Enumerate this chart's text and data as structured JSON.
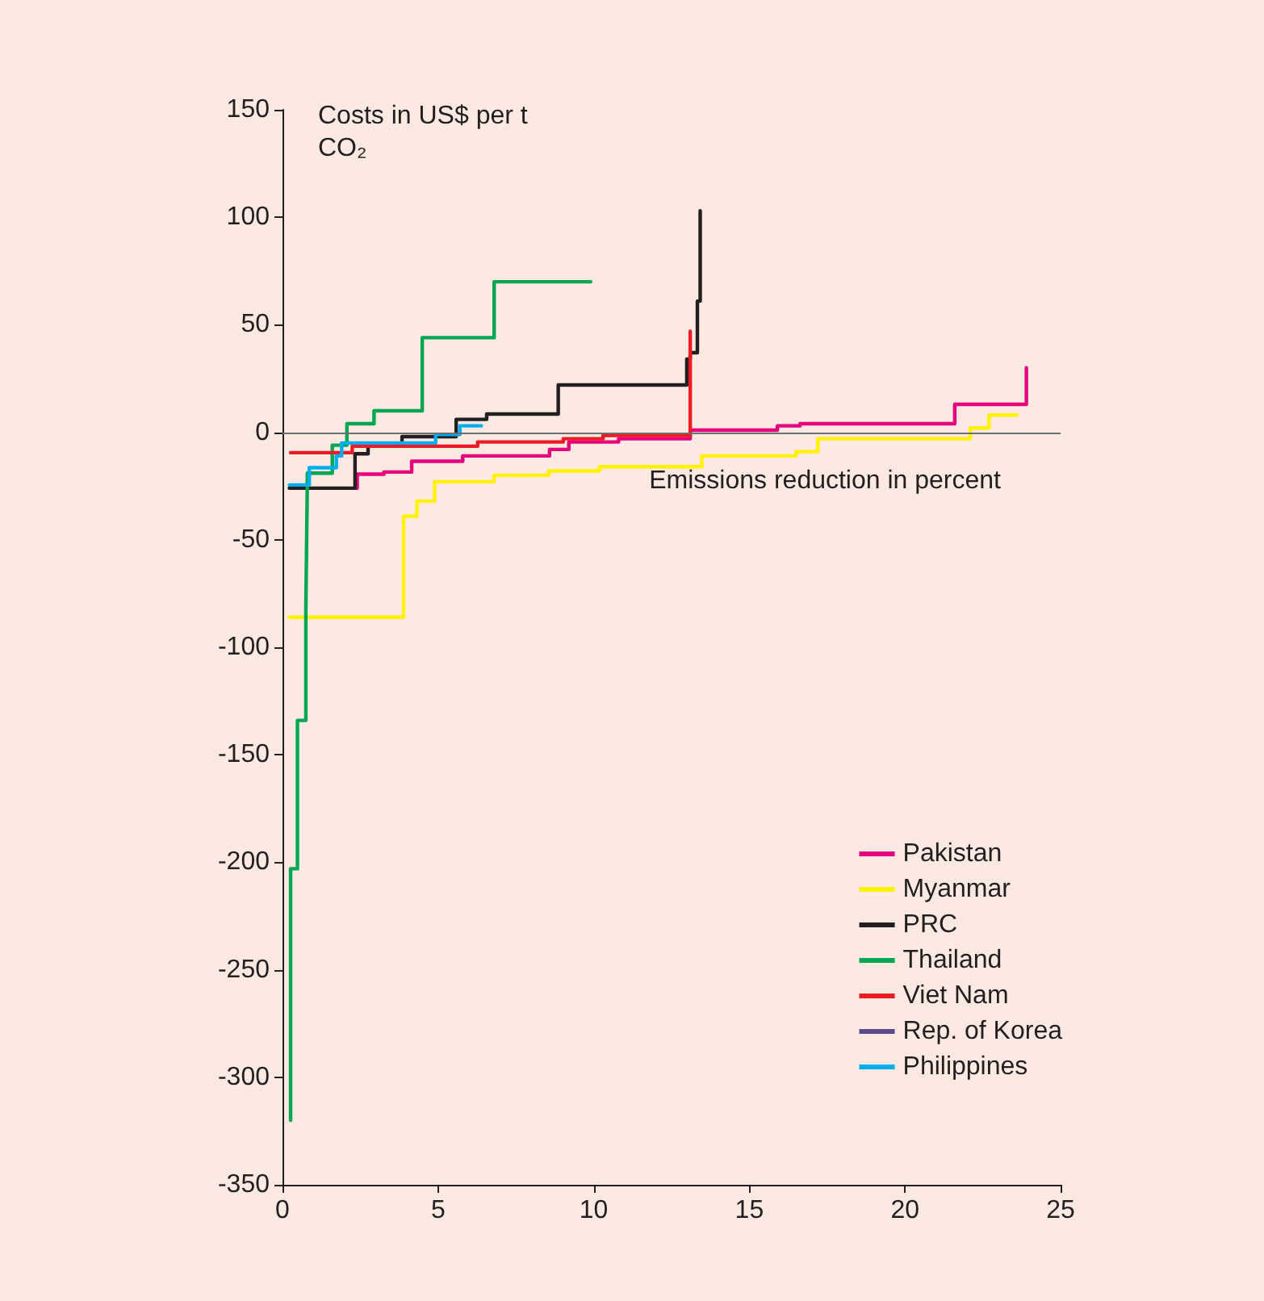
{
  "chart_data": {
    "type": "step",
    "ylabel": "Costs in US$ per t CO₂",
    "xlabel": "Emissions reduction in percent",
    "xlim": [
      0,
      25
    ],
    "xticks": [
      0,
      5,
      10,
      15,
      20,
      25
    ],
    "ylim": [
      -350,
      150
    ],
    "yticks": [
      -350,
      -300,
      -250,
      -200,
      -150,
      -100,
      -50,
      0,
      50,
      100,
      150
    ],
    "grid": false,
    "legend": "bottom right",
    "marker": "none",
    "line_style": "solid",
    "ref_lines": [
      {
        "axis": "y",
        "value": 0,
        "color": "#6d6e71"
      }
    ],
    "series": [
      {
        "name": "Pakistan",
        "color": "#e6007e",
        "x": [
          2.33,
          2.4,
          3.26,
          4.15,
          5.79,
          8.58,
          9.2,
          10.8,
          13.1,
          15.9,
          16.63,
          21.6,
          23.9
        ],
        "values": [
          -26,
          -19.5,
          -18.5,
          -13.5,
          -11,
          -8,
          -4.5,
          -3,
          1,
          3,
          4,
          13,
          30
        ]
      },
      {
        "name": "Myanmar",
        "color": "#fff200",
        "x": [
          0.22,
          3.89,
          4.32,
          4.89,
          6.8,
          8.55,
          10.19,
          13.47,
          16.5,
          17.2,
          22.1,
          22.7,
          23.6
        ],
        "values": [
          -86,
          -39,
          -32,
          -23,
          -20,
          -18,
          -16,
          -11,
          -9,
          -3,
          2,
          8,
          8
        ]
      },
      {
        "name": "PRC",
        "color": "#231f20",
        "x": [
          0.22,
          2.33,
          2.75,
          3.84,
          5.58,
          6.56,
          8.86,
          12.99,
          13.1,
          13.33,
          13.42
        ],
        "values": [
          -26,
          -10,
          -6.5,
          -2,
          6,
          8.5,
          22,
          34,
          37,
          61,
          103
        ]
      },
      {
        "name": "Thailand",
        "color": "#00a651",
        "x": [
          0.26,
          0.26,
          0.48,
          0.75,
          0.78,
          0.8,
          1.6,
          2.07,
          2.94,
          4.49,
          6.8,
          9.9
        ],
        "values": [
          -320,
          -203,
          -134,
          -82,
          -45,
          -19,
          -6,
          4,
          10,
          44,
          70,
          70
        ]
      },
      {
        "name": "Viet Nam",
        "color": "#ed1c24",
        "x": [
          0.26,
          2.24,
          6.27,
          9.02,
          10.3,
          13.1
        ],
        "values": [
          -9.5,
          -6.5,
          -4.5,
          -3,
          -1.5,
          47
        ]
      },
      {
        "name": "Rep. of Korea",
        "color": "#5b4a8b"
      },
      {
        "name": "Philippines",
        "color": "#00aeef",
        "x": [
          0.22,
          0.86,
          1.73,
          1.9,
          4.92,
          5.7,
          6.39
        ],
        "values": [
          -24.5,
          -16.5,
          -11,
          -5,
          -1,
          3,
          3
        ]
      }
    ]
  }
}
